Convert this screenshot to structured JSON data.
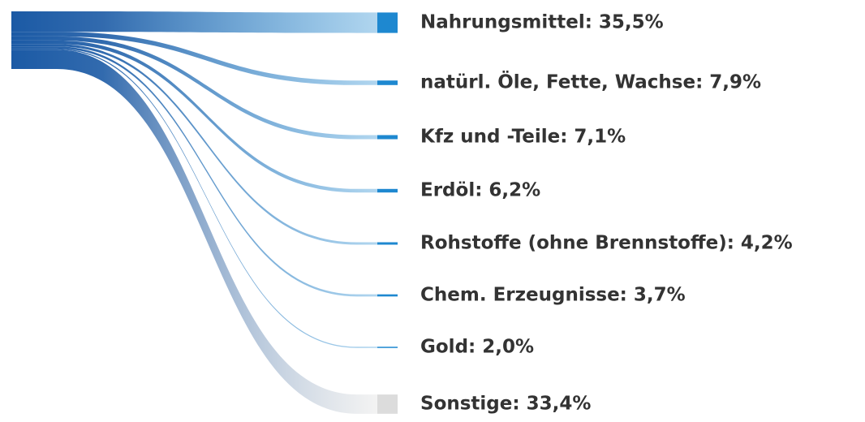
{
  "chart_data": {
    "type": "sankey",
    "categories": [
      "Nahrungsmittel: 35,5%",
      "natürl. Öle, Fette, Wachse: 7,9%",
      "Kfz und -Teile: 7,1%",
      "Erdöl: 6,2%",
      "Rohstoffe (ohne Brennstoffe): 4,2%",
      "Chem. Erzeugnisse: 3,7%",
      "Gold: 2,0%",
      "Sonstige: 33,4%"
    ],
    "values": [
      35.5,
      7.9,
      7.1,
      6.2,
      4.2,
      3.7,
      2.0,
      33.4
    ],
    "colors": [
      "#1e88d0",
      "#1e88d0",
      "#1e88d0",
      "#1e88d0",
      "#1e88d0",
      "#1e88d0",
      "#1e88d0",
      "#dcdcdc"
    ],
    "source_color": "#1b5aa5"
  }
}
